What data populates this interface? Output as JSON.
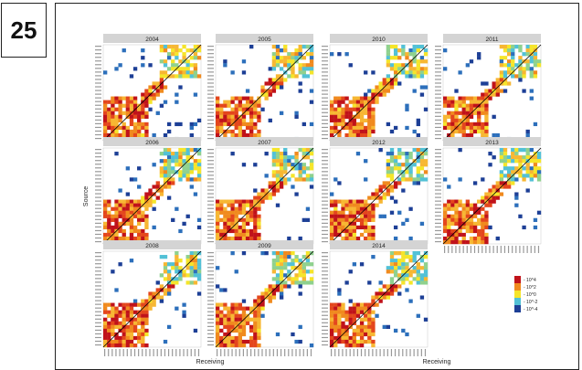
{
  "page_number": "25",
  "chart_data": {
    "type": "heatmap",
    "layout": "small multiples, 3 rows x 4 columns",
    "panels": [
      "2004",
      "2005",
      "2010",
      "2011",
      "2006",
      "2007",
      "2012",
      "2013",
      "2008",
      "2009",
      "2014"
    ],
    "xlabel": "Receiving",
    "ylabel": "Source",
    "legend": {
      "position": "right",
      "labels": [
        "10^4",
        "10^2",
        "10^0",
        "10^-2",
        "10^-4"
      ],
      "colors": [
        "#c0121a",
        "#f08a1e",
        "#f5e52a",
        "#52c1d6",
        "#1d3f96"
      ]
    },
    "colors": {
      "strip": "#d4d4d4",
      "diagonal": "#000000"
    }
  }
}
